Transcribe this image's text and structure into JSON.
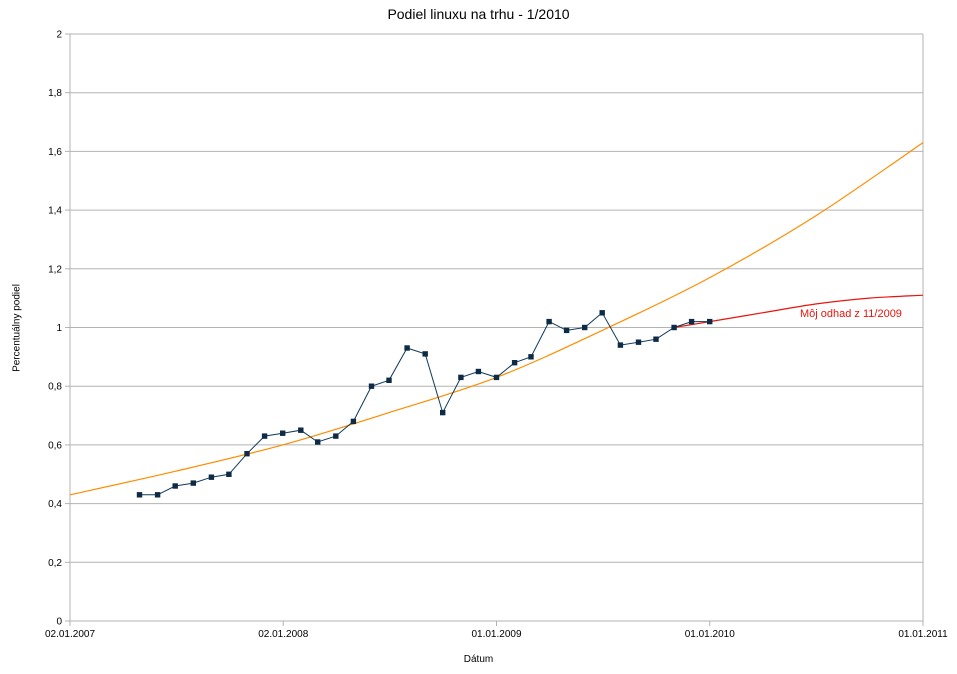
{
  "chart_data": {
    "type": "line",
    "title": "Podiel linuxu na trhu - 1/2010",
    "xlabel": "Dátum",
    "ylabel": "Percentuálny podiel",
    "xlim": [
      "2007-01-02",
      "2011-01-01"
    ],
    "ylim": [
      0,
      2
    ],
    "x_ticks": [
      {
        "date": "2007-01-02",
        "label": "02.01.2007"
      },
      {
        "date": "2008-01-02",
        "label": "02.01.2008"
      },
      {
        "date": "2009-01-01",
        "label": "01.01.2009"
      },
      {
        "date": "2010-01-01",
        "label": "01.01.2010"
      },
      {
        "date": "2011-01-01",
        "label": "01.01.2011"
      }
    ],
    "y_ticks": [
      {
        "value": 0,
        "label": "0"
      },
      {
        "value": 0.2,
        "label": "0,2"
      },
      {
        "value": 0.4,
        "label": "0,4"
      },
      {
        "value": 0.6,
        "label": "0,6"
      },
      {
        "value": 0.8,
        "label": "0,8"
      },
      {
        "value": 1.0,
        "label": "1"
      },
      {
        "value": 1.2,
        "label": "1,2"
      },
      {
        "value": 1.4,
        "label": "1,4"
      },
      {
        "value": 1.6,
        "label": "1,6"
      },
      {
        "value": 1.8,
        "label": "1,8"
      },
      {
        "value": 2.0,
        "label": "2"
      }
    ],
    "grid": true,
    "series": [
      {
        "color": "#0d3a5c",
        "marker": "square",
        "x": [
          "2007-05-01",
          "2007-06-01",
          "2007-07-01",
          "2007-08-01",
          "2007-09-01",
          "2007-10-01",
          "2007-11-01",
          "2007-12-01",
          "2008-01-01",
          "2008-02-01",
          "2008-03-01",
          "2008-04-01",
          "2008-05-01",
          "2008-06-01",
          "2008-07-01",
          "2008-08-01",
          "2008-09-01",
          "2008-10-01",
          "2008-11-01",
          "2008-12-01",
          "2009-01-01",
          "2009-02-01",
          "2009-03-01",
          "2009-04-01",
          "2009-05-01",
          "2009-06-01",
          "2009-07-01",
          "2009-08-01",
          "2009-09-01",
          "2009-10-01",
          "2009-11-01",
          "2009-12-01",
          "2010-01-01"
        ],
        "y": [
          0.43,
          0.43,
          0.46,
          0.47,
          0.49,
          0.5,
          0.57,
          0.63,
          0.64,
          0.65,
          0.61,
          0.63,
          0.68,
          0.8,
          0.82,
          0.93,
          0.91,
          0.71,
          0.83,
          0.85,
          0.83,
          0.88,
          0.9,
          1.02,
          0.99,
          1.0,
          1.05,
          0.94,
          0.95,
          0.96,
          1.0,
          1.02,
          1.02
        ]
      },
      {
        "color": "#ff8c00",
        "x": [
          "2007-01-02",
          "2007-07-01",
          "2008-01-01",
          "2008-07-01",
          "2009-01-01",
          "2009-07-01",
          "2010-01-01",
          "2010-07-01",
          "2011-01-01"
        ],
        "y": [
          0.43,
          0.51,
          0.6,
          0.71,
          0.83,
          0.99,
          1.17,
          1.38,
          1.63
        ]
      },
      {
        "color": "#e8140c",
        "annotation": "Môj odhad z 11/2009",
        "x": [
          "2009-11-01",
          "2010-01-01",
          "2010-04-01",
          "2010-07-01",
          "2010-10-01",
          "2011-01-01"
        ],
        "y": [
          1.0,
          1.02,
          1.05,
          1.08,
          1.1,
          1.11
        ]
      }
    ]
  }
}
